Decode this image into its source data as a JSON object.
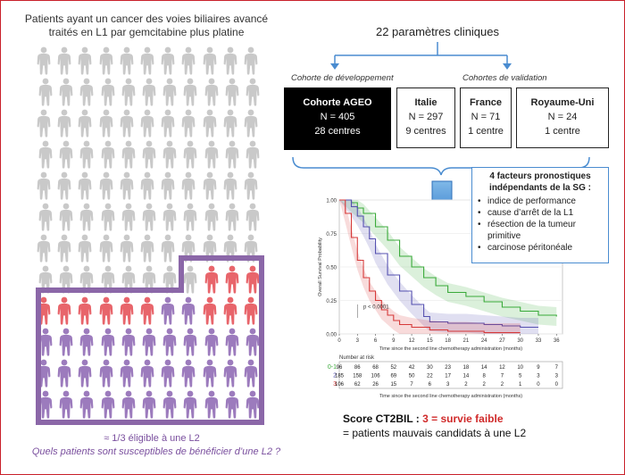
{
  "left_title": {
    "line1": "Patients ayant un cancer des voies biliaires avancé",
    "line2": "traités en L1 par gemcitabine plus platine"
  },
  "left_notes": {
    "eligible": "≈ 1/3 éligible à une L2",
    "question": "Quels patients sont susceptibles de bénéficier d’une L2 ?"
  },
  "params_title": "22 paramètres cliniques",
  "labels": {
    "development": "Cohorte de développement",
    "validation": "Cohortes de validation"
  },
  "cohorts": [
    {
      "name": "Cohorte AGEO",
      "n": "N = 405",
      "centers": "28 centres"
    },
    {
      "name": "Italie",
      "n": "N = 297",
      "centers": "9 centres"
    },
    {
      "name": "France",
      "n": "N = 71",
      "centers": "1 centre"
    },
    {
      "name": "Royaume-Uni",
      "n": "N = 24",
      "centers": "1 centre"
    }
  ],
  "factors": {
    "header1": "4 facteurs pronostiques",
    "header2": "indépendants de la SG :",
    "items": [
      "indice de performance",
      "cause d’arrêt de la L1",
      "résection de la tumeur",
      "primitive",
      "carcinose péritonéale"
    ]
  },
  "score": {
    "prefix": "Score CT2BIL : ",
    "value": "3 = survie faible",
    "line2": "= patients mauvais candidats à une L2"
  },
  "chart_data": {
    "type": "line",
    "ylabel": "Overall Survival Probability",
    "xlabel": "Time since the second line chemotherapy administration (months)",
    "xlim": [
      0,
      37
    ],
    "ylim": [
      0,
      1.0
    ],
    "x_ticks": [
      0,
      3,
      6,
      9,
      12,
      15,
      18,
      21,
      24,
      27,
      30,
      33,
      36
    ],
    "y_ticks": [
      "0.00",
      "0.25",
      "0.50",
      "0.75",
      "1.00"
    ],
    "pvalue": "p < 0.0001",
    "colors": {
      "0-1": "#3aaa3a",
      "2": "#5550b0",
      "3": "#d63a3a"
    },
    "series": [
      {
        "name": "0-1",
        "x": [
          0,
          2,
          3,
          4,
          6,
          8,
          10,
          12,
          14,
          16,
          18,
          21,
          24,
          27,
          30,
          33,
          36
        ],
        "y": [
          1.0,
          0.98,
          0.94,
          0.9,
          0.8,
          0.7,
          0.58,
          0.5,
          0.42,
          0.36,
          0.31,
          0.28,
          0.24,
          0.2,
          0.17,
          0.14,
          0.13
        ]
      },
      {
        "name": "2",
        "x": [
          0,
          2,
          3,
          4,
          5,
          6,
          8,
          10,
          12,
          14,
          15,
          18,
          21,
          24,
          27,
          30,
          33
        ],
        "y": [
          1.0,
          0.95,
          0.88,
          0.8,
          0.71,
          0.6,
          0.44,
          0.32,
          0.22,
          0.13,
          0.09,
          0.08,
          0.08,
          0.07,
          0.06,
          0.05,
          0.05
        ]
      },
      {
        "name": "3",
        "x": [
          0,
          1,
          2,
          3,
          4,
          5,
          6,
          7,
          8,
          9,
          10,
          12,
          15,
          18,
          21,
          24,
          27,
          30
        ],
        "y": [
          1.0,
          0.9,
          0.72,
          0.55,
          0.42,
          0.32,
          0.25,
          0.18,
          0.14,
          0.1,
          0.07,
          0.05,
          0.03,
          0.02,
          0.02,
          0.01,
          0.01,
          0.01
        ]
      }
    ],
    "risk_table": {
      "title": "Number at risk",
      "rows": [
        {
          "label": "0-1",
          "values": [
            "96",
            "86",
            "68",
            "52",
            "42",
            "30",
            "23",
            "18",
            "14",
            "12",
            "10",
            "9",
            "7"
          ]
        },
        {
          "label": "2",
          "values": [
            "185",
            "158",
            "106",
            "69",
            "50",
            "22",
            "17",
            "14",
            "8",
            "7",
            "5",
            "3",
            "3"
          ]
        },
        {
          "label": "3",
          "values": [
            "106",
            "62",
            "26",
            "15",
            "7",
            "6",
            "3",
            "2",
            "2",
            "2",
            "1",
            "0",
            "0"
          ]
        }
      ],
      "xlabel": "Time since the second line chemotherapy administration (months)"
    }
  }
}
